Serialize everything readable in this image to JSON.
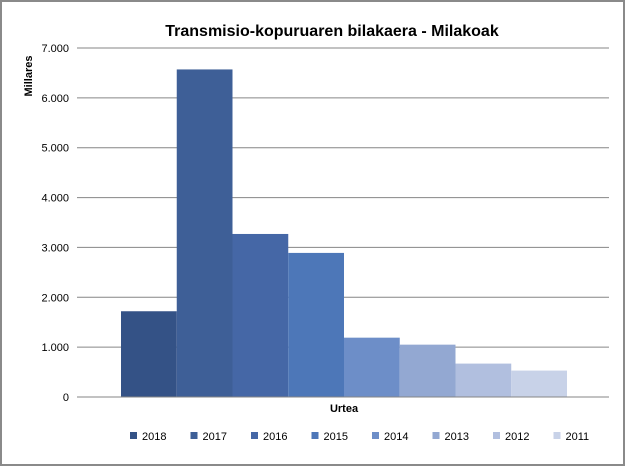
{
  "chart_data": {
    "type": "bar",
    "title": "Transmisio-kopuruaren bilakaera - Milakoak",
    "xlabel": "Urtea",
    "ylabel": "Millares",
    "ylim": [
      0,
      7000
    ],
    "yticks": [
      "0",
      "1.000",
      "2.000",
      "3.000",
      "4.000",
      "5.000",
      "6.000",
      "7.000"
    ],
    "ytick_values": [
      0,
      1000,
      2000,
      3000,
      4000,
      5000,
      6000,
      7000
    ],
    "grid": true,
    "legend_position": "bottom",
    "series": [
      {
        "name": "2018",
        "value": 1720,
        "color": "#345286"
      },
      {
        "name": "2017",
        "value": 6570,
        "color": "#3e5f97"
      },
      {
        "name": "2016",
        "value": 3270,
        "color": "#4567a6"
      },
      {
        "name": "2015",
        "value": 2890,
        "color": "#4d77b8"
      },
      {
        "name": "2014",
        "value": 1190,
        "color": "#6d8ec8"
      },
      {
        "name": "2013",
        "value": 1050,
        "color": "#93a8d2"
      },
      {
        "name": "2012",
        "value": 670,
        "color": "#b1bfdf"
      },
      {
        "name": "2011",
        "value": 530,
        "color": "#c8d2e8"
      }
    ]
  }
}
